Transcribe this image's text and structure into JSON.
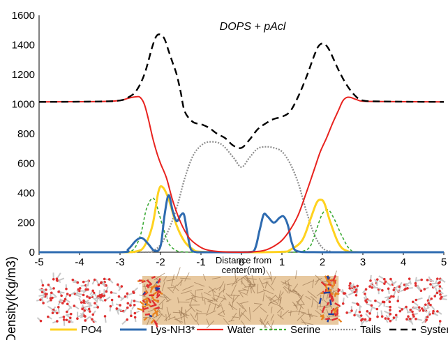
{
  "chart_data": {
    "type": "line",
    "title": "DOPS + pAcl",
    "xlabel_lines": [
      "Distance from",
      "center(nm)"
    ],
    "ylabel": "Density(Kg/m3)",
    "xlim": [
      -5,
      5
    ],
    "ylim": [
      0,
      1600
    ],
    "x_ticks": [
      "-5",
      "-4",
      "-3",
      "-2",
      "-1",
      "0",
      "1",
      "2",
      "3",
      "4",
      "5"
    ],
    "y_ticks": [
      "0",
      "200",
      "400",
      "600",
      "800",
      "1000",
      "1200",
      "1400",
      "1600"
    ],
    "grid": false,
    "legend_position": "bottom",
    "colors": {
      "PO4": "#FFD21F",
      "Lys-NH3*": "#2E6BB0",
      "Water": "#E8231F",
      "Serine": "#3BAA35",
      "Tails": "#8C8C8C",
      "System": "#000000"
    },
    "series": [
      {
        "name": "PO4",
        "x": [
          -5,
          -3,
          -2.6,
          -2.4,
          -2.2,
          -2.05,
          -1.95,
          -1.8,
          -1.6,
          -1.4,
          -1.2,
          -1.0,
          0,
          1.0,
          1.2,
          1.5,
          1.7,
          1.85,
          1.95,
          2.05,
          2.2,
          2.4,
          2.6,
          3,
          5
        ],
        "y": [
          0,
          0,
          5,
          40,
          180,
          410,
          440,
          360,
          180,
          70,
          20,
          3,
          0,
          3,
          15,
          80,
          220,
          330,
          355,
          330,
          200,
          60,
          10,
          0,
          0
        ]
      },
      {
        "name": "Lys-NH3*",
        "x": [
          -5,
          -3.0,
          -2.8,
          -2.6,
          -2.45,
          -2.3,
          -2.15,
          -2.0,
          -1.9,
          -1.8,
          -1.7,
          -1.6,
          -1.5,
          -1.42,
          -1.35,
          -1.25,
          -1.1,
          -0.9,
          0,
          0.3,
          0.45,
          0.55,
          0.65,
          0.8,
          0.95,
          1.05,
          1.15,
          1.25,
          1.4,
          2,
          5
        ],
        "y": [
          0,
          0,
          20,
          80,
          95,
          55,
          10,
          40,
          250,
          385,
          280,
          210,
          250,
          255,
          150,
          20,
          0,
          0,
          0,
          5,
          150,
          255,
          240,
          200,
          235,
          240,
          180,
          60,
          5,
          0,
          0
        ]
      },
      {
        "name": "Water",
        "x": [
          -5,
          -3.5,
          -3.0,
          -2.8,
          -2.6,
          -2.5,
          -2.4,
          -2.3,
          -2.2,
          -2.1,
          -2.0,
          -1.85,
          -1.7,
          -1.5,
          -1.3,
          -1.1,
          -0.9,
          -0.6,
          0,
          0.4,
          0.6,
          0.8,
          1.0,
          1.2,
          1.4,
          1.6,
          1.8,
          1.95,
          2.1,
          2.25,
          2.4,
          2.5,
          2.6,
          2.7,
          2.85,
          3.0,
          3.5,
          5
        ],
        "y": [
          1015,
          1018,
          1025,
          1040,
          1050,
          1045,
          1000,
          900,
          780,
          680,
          600,
          500,
          350,
          200,
          100,
          50,
          20,
          5,
          0,
          5,
          15,
          40,
          80,
          150,
          250,
          400,
          560,
          680,
          770,
          870,
          960,
          1020,
          1045,
          1045,
          1030,
          1020,
          1018,
          1015
        ]
      },
      {
        "name": "Serine",
        "x": [
          -5,
          -3,
          -2.7,
          -2.5,
          -2.35,
          -2.2,
          -2.1,
          -1.95,
          -1.8,
          -1.6,
          -1.4,
          -1.2,
          -1.0,
          0,
          1.2,
          1.5,
          1.7,
          1.85,
          2.0,
          2.15,
          2.3,
          2.5,
          2.7,
          3,
          5
        ],
        "y": [
          0,
          0,
          10,
          110,
          290,
          365,
          320,
          180,
          60,
          10,
          2,
          0,
          0,
          0,
          0,
          5,
          40,
          150,
          260,
          285,
          220,
          100,
          15,
          0,
          0
        ]
      },
      {
        "name": "Tails",
        "x": [
          -5,
          -2.5,
          -2.2,
          -2.0,
          -1.8,
          -1.6,
          -1.4,
          -1.2,
          -1.0,
          -0.8,
          -0.5,
          -0.2,
          0,
          0.2,
          0.4,
          0.6,
          0.8,
          1.0,
          1.2,
          1.4,
          1.6,
          1.8,
          2.0,
          2.2,
          2.5,
          5
        ],
        "y": [
          0,
          0,
          10,
          50,
          150,
          300,
          500,
          650,
          720,
          745,
          730,
          640,
          575,
          640,
          700,
          712,
          705,
          680,
          600,
          470,
          280,
          120,
          30,
          5,
          0,
          0
        ]
      },
      {
        "name": "System",
        "x": [
          -5,
          -3.5,
          -3.0,
          -2.8,
          -2.6,
          -2.4,
          -2.2,
          -2.1,
          -2.0,
          -1.9,
          -1.8,
          -1.7,
          -1.6,
          -1.5,
          -1.4,
          -1.2,
          -1.0,
          -0.8,
          -0.6,
          -0.4,
          -0.2,
          0,
          0.2,
          0.4,
          0.6,
          0.8,
          1.0,
          1.2,
          1.4,
          1.6,
          1.8,
          1.9,
          2.0,
          2.1,
          2.2,
          2.4,
          2.6,
          2.8,
          3.0,
          3.5,
          5
        ],
        "y": [
          1015,
          1018,
          1025,
          1045,
          1090,
          1200,
          1390,
          1460,
          1470,
          1440,
          1360,
          1280,
          1200,
          1080,
          950,
          880,
          865,
          840,
          800,
          770,
          720,
          705,
          760,
          830,
          870,
          900,
          915,
          950,
          1050,
          1180,
          1330,
          1390,
          1410,
          1395,
          1350,
          1230,
          1130,
          1060,
          1025,
          1018,
          1015
        ]
      }
    ],
    "legend": [
      "PO4",
      "Lys-NH3*",
      "Water",
      "Serine",
      "Tails",
      "System"
    ]
  },
  "molecular_strip": {
    "water_color": "#C8C8C8",
    "oxygen_color": "#E03030",
    "lipid_color": "#E8C9A0",
    "lipid_edge": "#9E7A55",
    "headgroup_color": "#E8831F",
    "lys_color": "#1F3FA0"
  }
}
